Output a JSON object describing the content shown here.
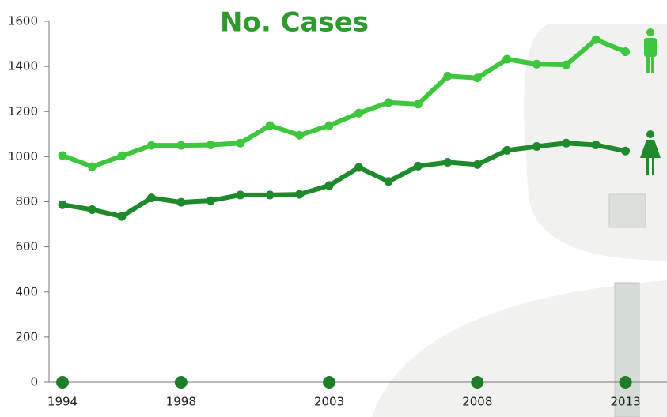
{
  "chart_data": {
    "type": "line",
    "title": "No. Cases",
    "x": [
      1994,
      1995,
      1996,
      1997,
      1998,
      1999,
      2000,
      2001,
      2002,
      2003,
      2004,
      2005,
      2006,
      2007,
      2008,
      2009,
      2010,
      2011,
      2012,
      2013
    ],
    "series": [
      {
        "color": "#3ec63e",
        "values": [
          1005,
          956,
          1003,
          1050,
          1050,
          1052,
          1060,
          1138,
          1095,
          1138,
          1193,
          1240,
          1233,
          1357,
          1349,
          1432,
          1410,
          1407,
          1519,
          1465
        ]
      },
      {
        "color": "#1f8a2c",
        "values": [
          787,
          765,
          735,
          817,
          798,
          805,
          830,
          830,
          833,
          872,
          952,
          890,
          958,
          975,
          965,
          1028,
          1045,
          1060,
          1052,
          1025
        ]
      }
    ],
    "xlim": [
      1993.5,
      2014.4
    ],
    "xticks": [
      1994,
      1998,
      2003,
      2008,
      2013
    ],
    "ylim": [
      0,
      1600
    ],
    "yticks": [
      0,
      200,
      400,
      600,
      800,
      1000,
      1200,
      1400,
      1600
    ]
  }
}
